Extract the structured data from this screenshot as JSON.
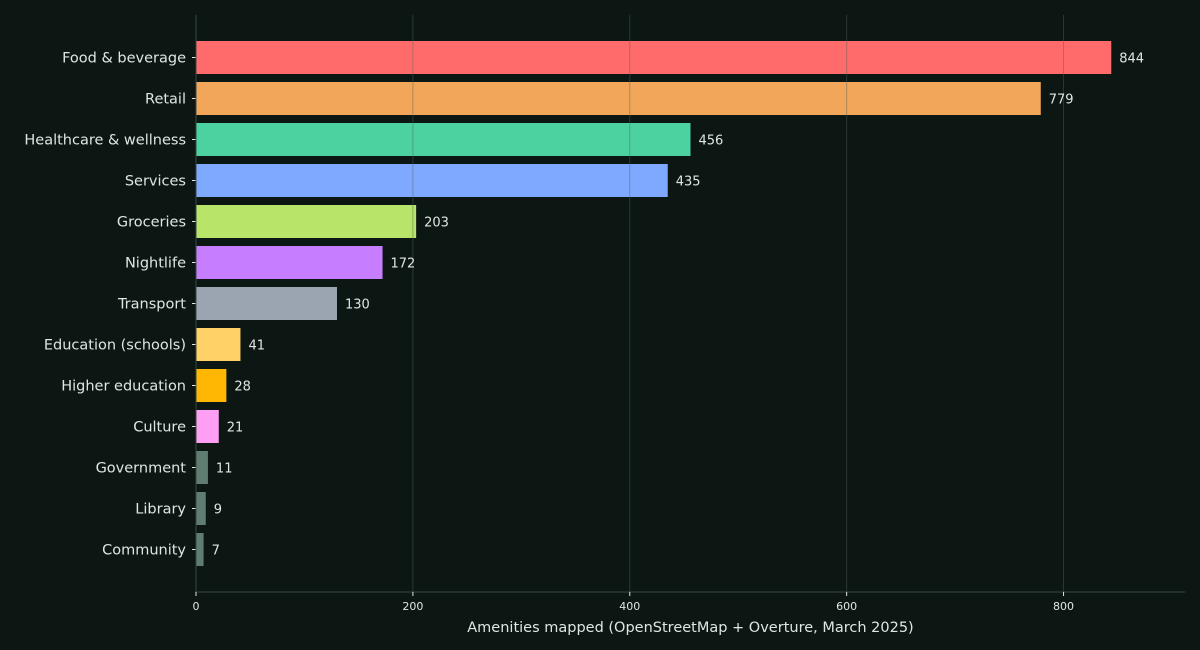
{
  "chart_data": {
    "type": "bar",
    "orientation": "horizontal",
    "categories": [
      "Food & beverage",
      "Retail",
      "Healthcare & wellness",
      "Services",
      "Groceries",
      "Nightlife",
      "Transport",
      "Education (schools)",
      "Higher education",
      "Culture",
      "Government",
      "Library",
      "Community"
    ],
    "values": [
      844,
      779,
      456,
      435,
      203,
      172,
      130,
      41,
      28,
      21,
      11,
      9,
      7
    ],
    "value_labels": [
      "844",
      "779",
      "456",
      "435",
      "203",
      "172",
      "130",
      "41",
      "28",
      "21",
      "11",
      "9",
      "7"
    ],
    "bar_colors": [
      "#ff6b6b",
      "#f2a65a",
      "#4cd1a0",
      "#7fa8ff",
      "#b8e46a",
      "#c77dff",
      "#9aa5b1",
      "#ffd166",
      "#ffb703",
      "#ff9ff3",
      "#5f7d71",
      "#5f7d71",
      "#5f7d71"
    ],
    "title": "",
    "xlabel": "Amenities mapped (OpenStreetMap + Overture, March 2025)",
    "ylabel": "",
    "xlim": [
      0,
      912
    ],
    "xticks": [
      0,
      200,
      400,
      600,
      800
    ],
    "xtick_labels": [
      "0",
      "200",
      "400",
      "600",
      "800"
    ],
    "grid": "vertical",
    "legend": "none",
    "colors": {
      "background": "#0c1713",
      "text": "#dfe6e2",
      "grid": "#2a3631",
      "axis": "#3a4842"
    }
  }
}
